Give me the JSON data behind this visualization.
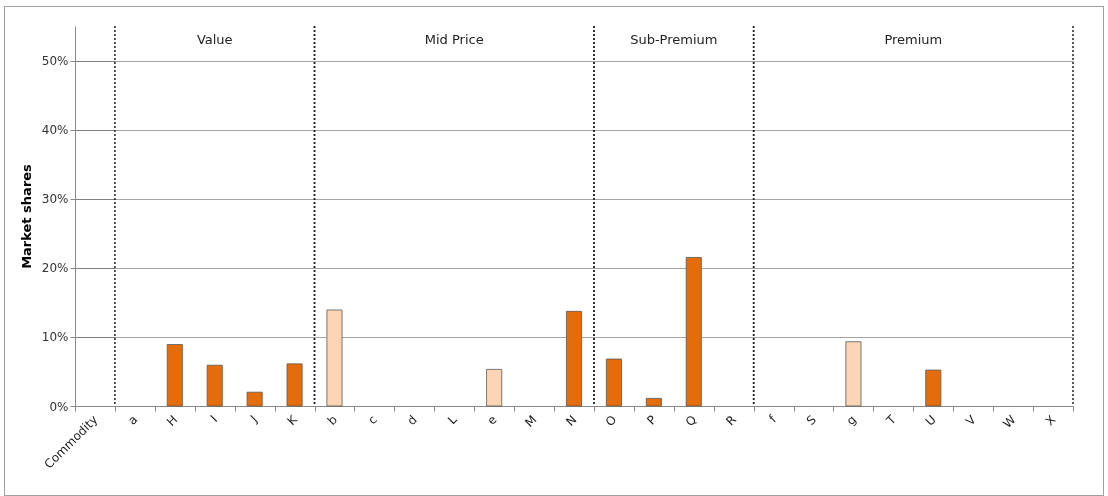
{
  "chart_data": {
    "type": "bar",
    "ylabel": "Market shares",
    "categories": [
      "Commodity",
      "a",
      "H",
      "I",
      "J",
      "K",
      "b",
      "c",
      "d",
      "L",
      "e",
      "M",
      "N",
      "O",
      "P",
      "Q",
      "R",
      "f",
      "S",
      "g",
      "T",
      "U",
      "V",
      "W",
      "X"
    ],
    "values": [
      null,
      null,
      8.9,
      5.9,
      2,
      6.1,
      13.9,
      null,
      null,
      null,
      5.3,
      null,
      13.7,
      6.8,
      1.1,
      21.5,
      null,
      null,
      null,
      9.3,
      null,
      5.2,
      null,
      null,
      null
    ],
    "colors": [
      "#e46c0a",
      "#e46c0a",
      "#e46c0a",
      "#e46c0a",
      "#e46c0a",
      "#e46c0a",
      "#fcd5b5",
      "#e46c0a",
      "#e46c0a",
      "#e46c0a",
      "#fcd5b5",
      "#e46c0a",
      "#e46c0a",
      "#e46c0a",
      "#e46c0a",
      "#e46c0a",
      "#e46c0a",
      "#e46c0a",
      "#e46c0a",
      "#fcd5b5",
      "#e46c0a",
      "#e46c0a",
      "#e46c0a",
      "#e46c0a",
      "#e46c0a"
    ],
    "ylim": [
      0,
      55
    ],
    "yticks": [
      {
        "value": 0,
        "label": "0%"
      },
      {
        "value": 10,
        "label": "10%"
      },
      {
        "value": 20,
        "label": "20%"
      },
      {
        "value": 30,
        "label": "30%"
      },
      {
        "value": 40,
        "label": "40%"
      },
      {
        "value": 50,
        "label": "50%"
      }
    ],
    "grid": "y",
    "bands": [
      {
        "axis": "x",
        "from": "a",
        "to": "K",
        "label": "Value",
        "color": "#ffffff"
      },
      {
        "axis": "x",
        "from": "b",
        "to": "N",
        "label": "Mid Price",
        "color": "#ffffff"
      },
      {
        "axis": "x",
        "from": "O",
        "to": "R",
        "label": "Sub-Premium",
        "color": "#ffffff"
      },
      {
        "axis": "x",
        "from": "f",
        "to": "X",
        "label": "Premium",
        "color": "#ffffff"
      }
    ]
  }
}
